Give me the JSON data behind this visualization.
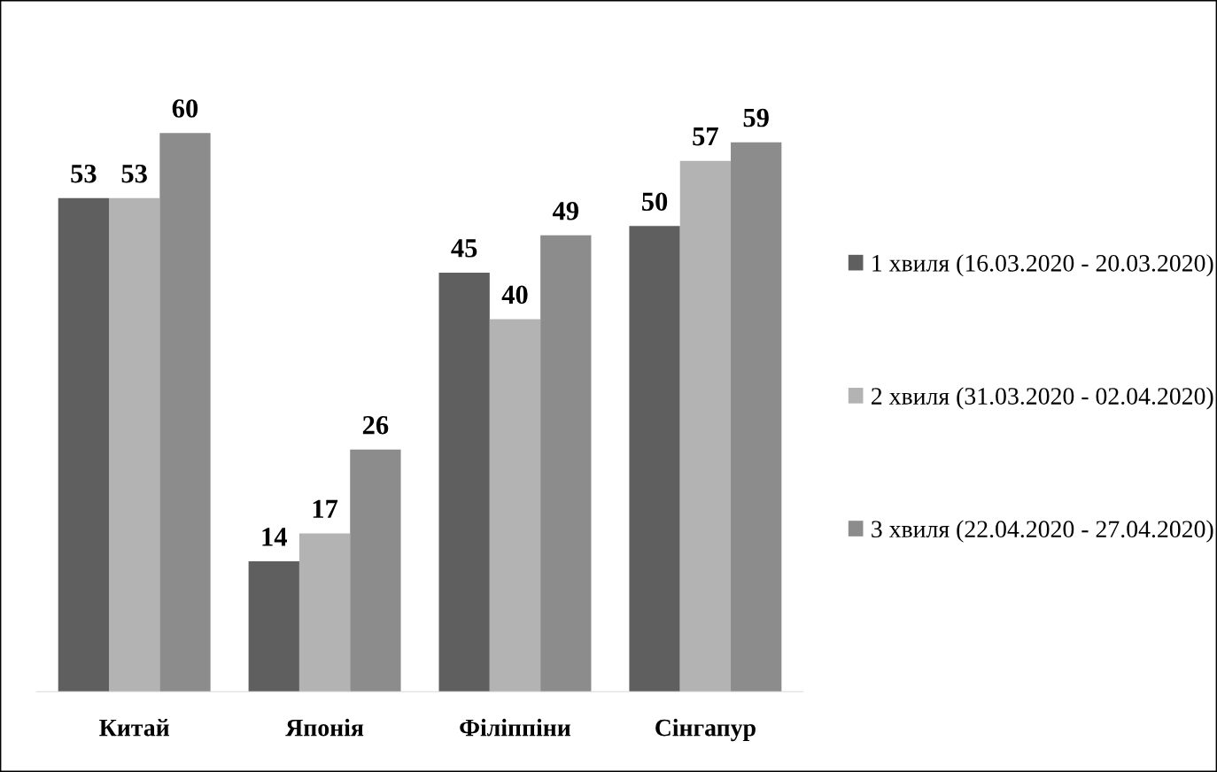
{
  "chart_data": {
    "type": "bar",
    "categories": [
      "Китай",
      "Японія",
      "Філіппіни",
      "Сінгапур"
    ],
    "series": [
      {
        "name": "1 хвиля (16.03.2020 - 20.03.2020)",
        "color": "#5f5f5f",
        "values": [
          53,
          14,
          45,
          50
        ]
      },
      {
        "name": "2 хвиля (31.03.2020 - 02.04.2020)",
        "color": "#b3b3b3",
        "values": [
          53,
          17,
          40,
          57
        ]
      },
      {
        "name": "3 хвиля (22.04.2020 - 27.04.2020)",
        "color": "#8c8c8c",
        "values": [
          60,
          26,
          49,
          59
        ]
      }
    ],
    "data_labels": true,
    "legend": "right",
    "grid": false
  }
}
